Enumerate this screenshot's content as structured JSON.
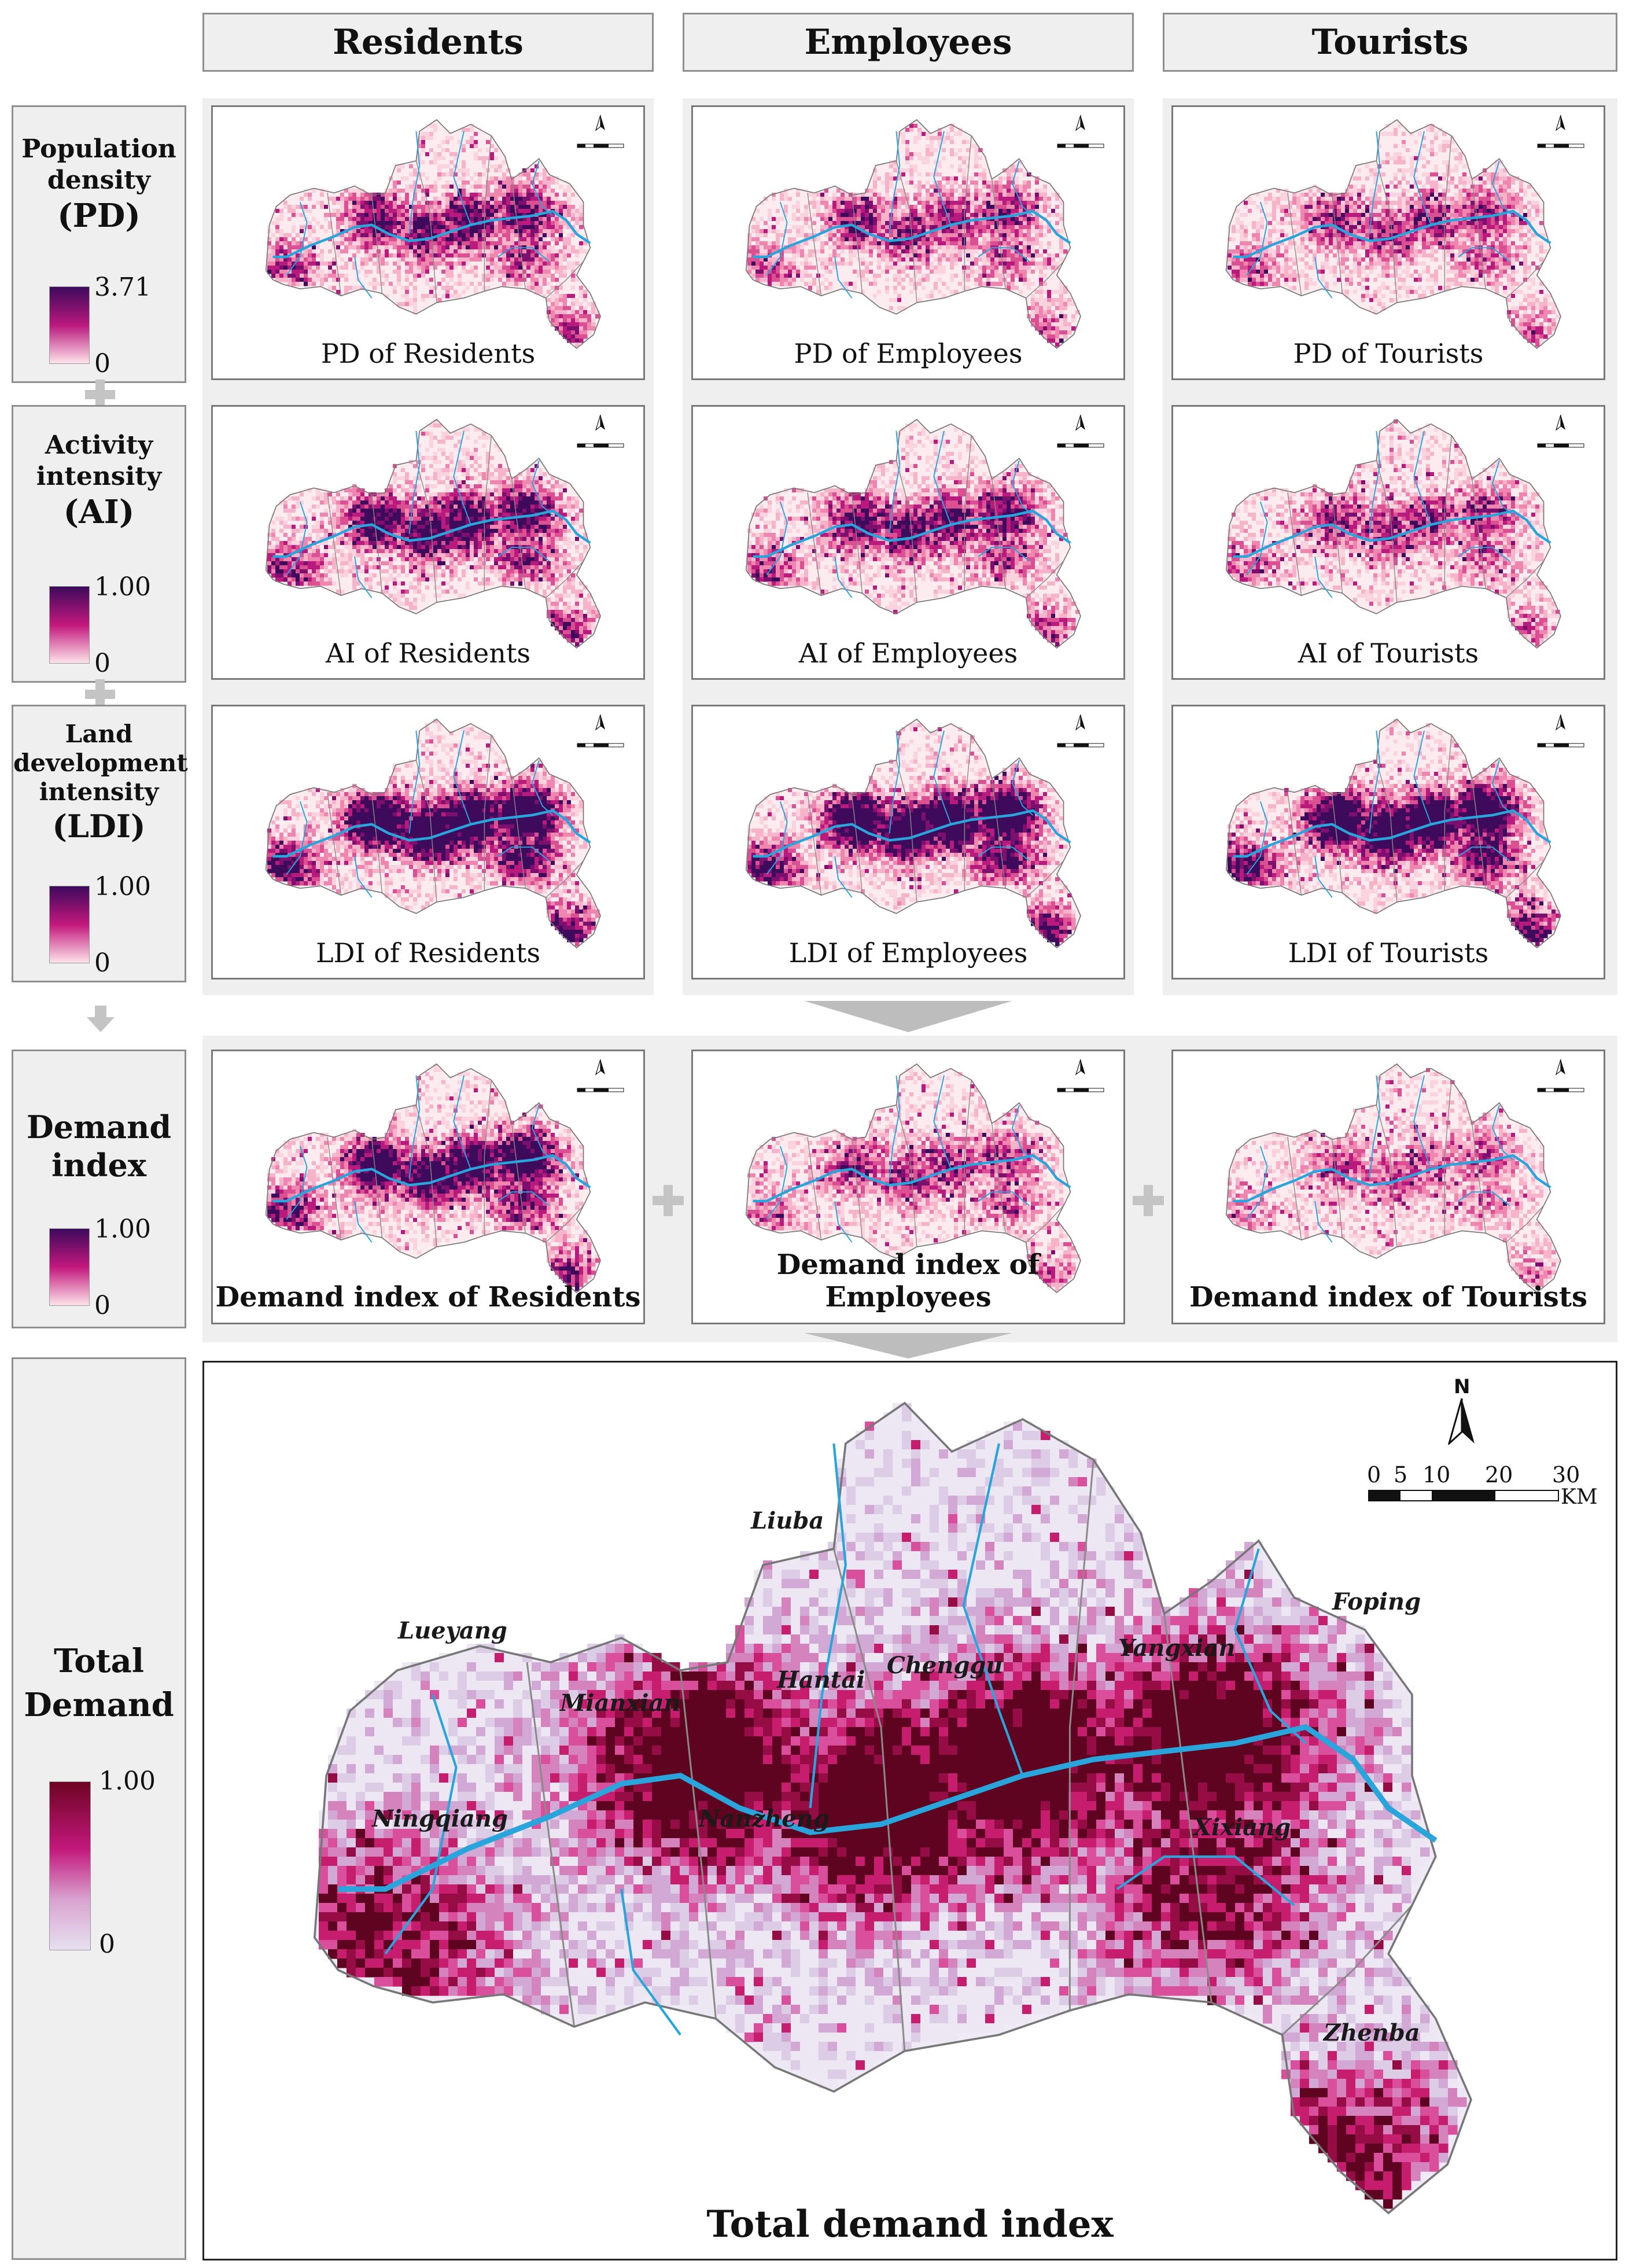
{
  "columns": [
    "Residents",
    "Employees",
    "Tourists"
  ],
  "rows": [
    {
      "id": "pd",
      "title_lines": [
        "Population",
        "density"
      ],
      "abbr": "(PD)",
      "max": "3.71",
      "min": "0",
      "labels": [
        "PD of Residents",
        "PD of Employees",
        "PD of Tourists"
      ]
    },
    {
      "id": "ai",
      "title_lines": [
        "Activity",
        "intensity"
      ],
      "abbr": "(AI)",
      "max": "1.00",
      "min": "0",
      "labels": [
        "AI of Residents",
        "AI of Employees",
        "AI of Tourists"
      ]
    },
    {
      "id": "ldi",
      "title_lines": [
        "Land",
        "development",
        "intensity"
      ],
      "abbr": "(LDI)",
      "max": "1.00",
      "min": "0",
      "labels": [
        "LDI of Residents",
        "LDI of Employees",
        "LDI of Tourists"
      ]
    }
  ],
  "demand": {
    "title_lines": [
      "Demand",
      "index"
    ],
    "max": "1.00",
    "min": "0",
    "labels": [
      "Demand index  of Residents",
      "Demand index of Employees",
      "Demand index of Tourists"
    ]
  },
  "total": {
    "title_lines": [
      "Total",
      "Demand"
    ],
    "max": "1.00",
    "min": "0",
    "map_title": "Total demand index"
  },
  "scale": {
    "north": "N",
    "ticks": [
      "0",
      "5",
      "10",
      "20",
      "30"
    ],
    "unit": "KM"
  },
  "towns": [
    "Liuba",
    "Lueyang",
    "Foping",
    "Yangxian",
    "Chenggu",
    "Hantai",
    "Mianxian",
    "Nanzheng",
    "Ningqiang",
    "Xixiang",
    "Zhenba"
  ],
  "colors": {
    "panel_bg": "#efefef",
    "border": "#8f8f8f",
    "river": "#2aa5dc",
    "purple_dark": "#3d0a5c",
    "magenta": "#c2187c",
    "pink_light": "#fde3ea",
    "total_dark": "#6e0423",
    "total_light": "#e6e0f0"
  }
}
